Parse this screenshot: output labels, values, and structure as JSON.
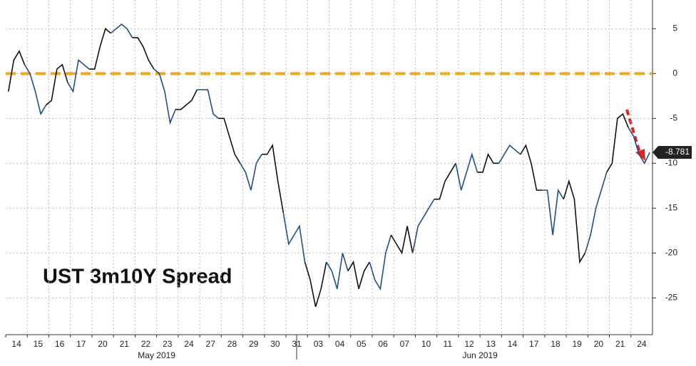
{
  "chart_data": {
    "type": "line",
    "title": "UST 3m10Y Spread",
    "categories": [
      "14",
      "15",
      "16",
      "17",
      "20",
      "21",
      "22",
      "23",
      "24",
      "27",
      "28",
      "29",
      "30",
      "31",
      "03",
      "04",
      "05",
      "06",
      "07",
      "10",
      "11",
      "12",
      "13",
      "14",
      "17",
      "18",
      "19",
      "20",
      "21",
      "24"
    ],
    "month_labels": [
      "May 2019",
      "Jun 2019"
    ],
    "series": [
      {
        "name": "UST 3m10Y Spread",
        "color": "#1d4f8a",
        "values": [
          [
            -2,
            1.5,
            2.5,
            1
          ],
          [
            0,
            -2,
            -4.5,
            -3.5
          ],
          [
            -3,
            0.5,
            1,
            -1
          ],
          [
            -2,
            1.5,
            1,
            0.5
          ],
          [
            0.5,
            3,
            5,
            4.5
          ],
          [
            5,
            5.5,
            5,
            4
          ],
          [
            4,
            3,
            1.5,
            0.5
          ],
          [
            0,
            -2,
            -5.5,
            -4
          ],
          [
            -4,
            -3.5,
            -3,
            -1.8
          ],
          [
            -1.8,
            -1.8,
            -4.5,
            -5
          ],
          [
            -5,
            -7,
            -9,
            -10
          ],
          [
            -11,
            -13,
            -10,
            -9
          ],
          [
            -9,
            -8,
            -12,
            -15.5
          ],
          [
            -19,
            -18,
            -17,
            -21
          ],
          [
            -23,
            -26,
            -24,
            -21
          ],
          [
            -22,
            -24,
            -20,
            -22
          ],
          [
            -21,
            -24,
            -22,
            -21
          ],
          [
            -23,
            -24,
            -20,
            -18
          ],
          [
            -19,
            -20,
            -17,
            -20
          ],
          [
            -17,
            -16,
            -15,
            -14
          ],
          [
            -14,
            -12,
            -11,
            -10
          ],
          [
            -13,
            -11,
            -9,
            -11
          ],
          [
            -11,
            -9,
            -10,
            -10
          ],
          [
            -9,
            -8,
            -8.5,
            -9
          ],
          [
            -8,
            -10,
            -13,
            -13
          ],
          [
            -13,
            -18,
            -13,
            -14
          ],
          [
            -12,
            -14,
            -21,
            -20
          ],
          [
            -18,
            -15,
            -13,
            -11
          ],
          [
            -10,
            -5,
            -4.5,
            -6
          ],
          [
            -7,
            -9,
            -10,
            -8.781
          ]
        ]
      }
    ],
    "hline": 0,
    "hline_color": "#f0a81c",
    "ylim": [
      -29.1,
      8.2
    ],
    "yticks": [
      5,
      0,
      -5,
      -10,
      -15,
      -20,
      -25
    ],
    "grid": true
  }
}
